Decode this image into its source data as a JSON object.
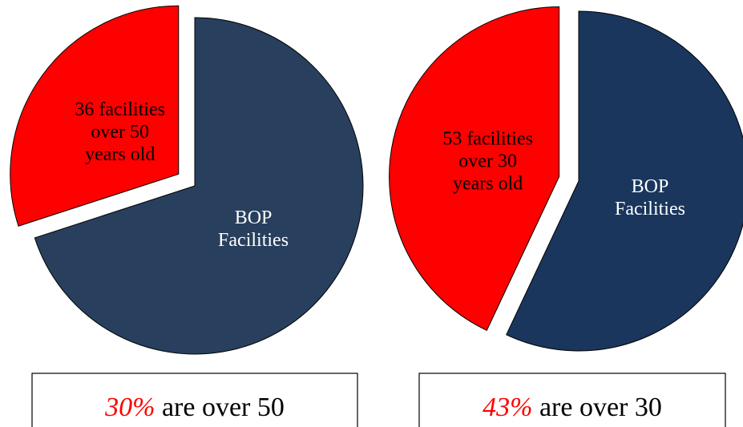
{
  "chart_data": [
    {
      "type": "pie",
      "categories": [
        "36 facilities\nover 50\nyears old",
        "BOP\nFacilities"
      ],
      "values": [
        30,
        70
      ],
      "colors": [
        "#ff0000",
        "#283f5e"
      ],
      "label_colors": [
        "#000000",
        "#ffffff"
      ],
      "startangle": 252,
      "explode": [
        true,
        false
      ],
      "caption": {
        "highlight": "30%",
        "text": "are over 50"
      }
    },
    {
      "type": "pie",
      "categories": [
        "53 facilities\nover 30\nyears old",
        "BOP\nFacilities"
      ],
      "values": [
        43,
        57
      ],
      "colors": [
        "#ff0000",
        "#1a365d"
      ],
      "label_colors": [
        "#000000",
        "#ffffff"
      ],
      "startangle": 205.2,
      "explode": [
        true,
        false
      ],
      "caption": {
        "highlight": "43%",
        "text": "are over 30"
      }
    }
  ]
}
